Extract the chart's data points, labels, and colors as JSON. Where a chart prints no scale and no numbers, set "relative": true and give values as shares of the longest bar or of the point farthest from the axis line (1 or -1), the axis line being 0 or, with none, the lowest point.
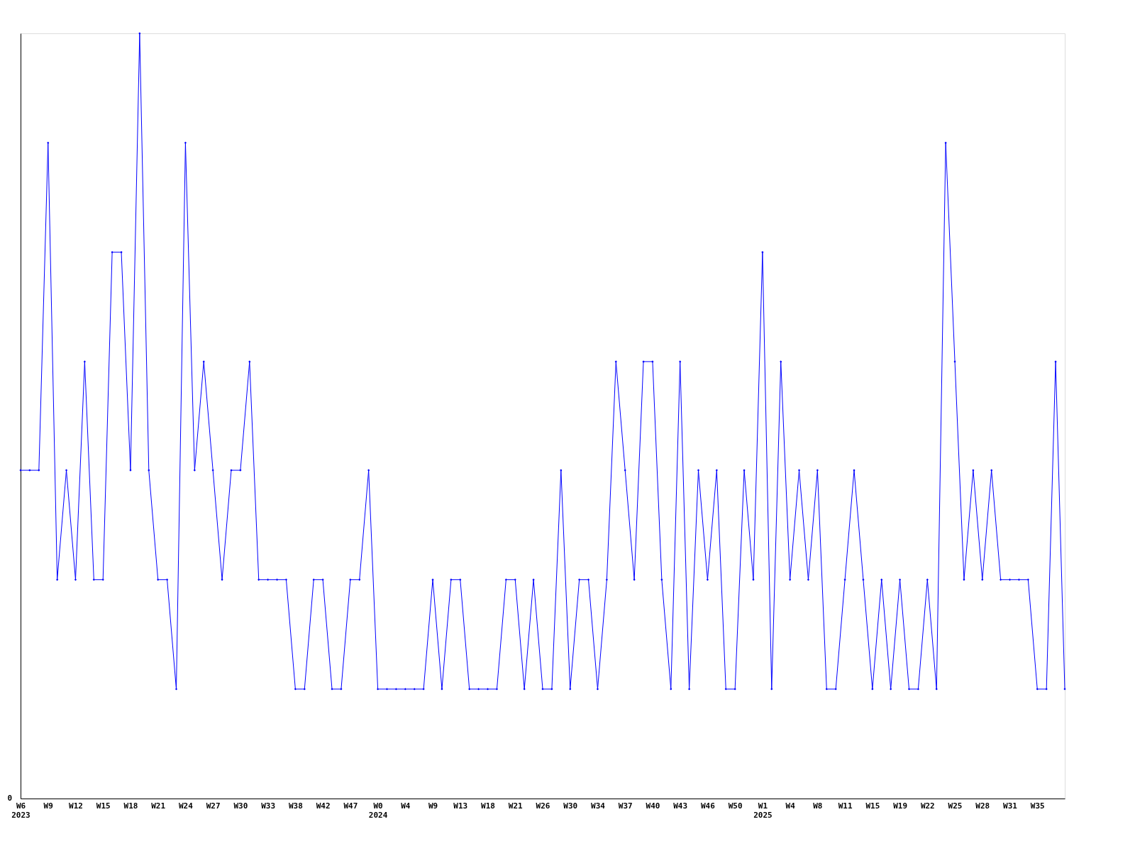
{
  "chart_data": {
    "type": "line",
    "relative": true,
    "annotations": [
      "0"
    ],
    "marker": "diamond",
    "line_style": "solid",
    "grid": false,
    "categories": [
      "W6\n2023",
      null,
      null,
      "W9",
      null,
      null,
      "W12",
      null,
      null,
      "W15",
      null,
      null,
      "W18",
      null,
      null,
      "W21",
      null,
      null,
      "W24",
      null,
      null,
      "W27",
      null,
      null,
      "W30",
      null,
      null,
      "W33",
      null,
      null,
      "W38",
      null,
      null,
      "W42",
      null,
      null,
      "W47",
      null,
      null,
      "W0\n2024",
      null,
      null,
      "W4",
      null,
      null,
      "W9",
      null,
      null,
      "W13",
      null,
      null,
      "W18",
      null,
      null,
      "W21",
      null,
      null,
      "W26",
      null,
      null,
      "W30",
      null,
      null,
      "W34",
      null,
      null,
      "W37",
      null,
      null,
      "W40",
      null,
      null,
      "W43",
      null,
      null,
      "W46",
      null,
      null,
      "W50",
      null,
      null,
      "W1\n2025",
      null,
      null,
      "W4",
      null,
      null,
      "W8",
      null,
      null,
      "W11",
      null,
      null,
      "W15",
      null,
      null,
      "W19",
      null,
      null,
      "W22",
      null,
      null,
      "W25",
      null,
      null,
      "W28",
      null,
      null,
      "W31",
      null,
      null,
      "W35",
      null,
      null,
      null
    ],
    "series": [
      {
        "color": "#0000ff",
        "values": [
          0.429,
          0.429,
          0.429,
          0.857,
          0.286,
          0.429,
          0.286,
          0.571,
          0.286,
          0.286,
          0.714,
          0.714,
          0.429,
          1,
          0.429,
          0.286,
          0.286,
          0.143,
          0.857,
          0.429,
          0.571,
          0.429,
          0.286,
          0.429,
          0.429,
          0.571,
          0.286,
          0.286,
          0.286,
          0.286,
          0.143,
          0.143,
          0.286,
          0.286,
          0.143,
          0.143,
          0.286,
          0.286,
          0.429,
          0.143,
          0.143,
          0.143,
          0.143,
          0.143,
          0.143,
          0.286,
          0.143,
          0.286,
          0.286,
          0.143,
          0.143,
          0.143,
          0.143,
          0.286,
          0.286,
          0.143,
          0.286,
          0.143,
          0.143,
          0.429,
          0.143,
          0.286,
          0.286,
          0.143,
          0.286,
          0.571,
          0.429,
          0.286,
          0.571,
          0.571,
          0.286,
          0.143,
          0.571,
          0.143,
          0.429,
          0.286,
          0.429,
          0.143,
          0.143,
          0.429,
          0.286,
          0.714,
          0.143,
          0.571,
          0.286,
          0.429,
          0.286,
          0.429,
          0.143,
          0.143,
          0.286,
          0.429,
          0.286,
          0.143,
          0.286,
          0.143,
          0.286,
          0.143,
          0.143,
          0.286,
          0.143,
          0.857,
          0.571,
          0.286,
          0.429,
          0.286,
          0.429,
          0.286,
          0.286,
          0.286,
          0.286,
          0.143,
          0.143,
          0.571,
          0.143
        ]
      }
    ]
  }
}
